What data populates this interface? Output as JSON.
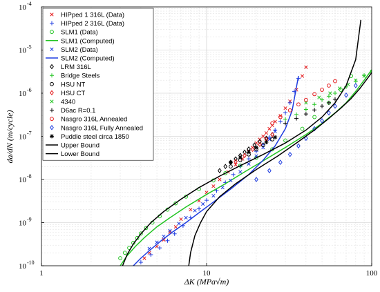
{
  "chart_data": {
    "type": "scatter",
    "xscale": "log",
    "yscale": "log",
    "xlim": [
      1,
      100
    ],
    "ylim": [
      1e-10,
      0.0001
    ],
    "grid": true,
    "legend_placement": "top-left",
    "xlabel": "ΔK (MPa√m)",
    "ylabel": "da/dN (m/cycle)",
    "x_ticks": [
      {
        "value": 1,
        "label": "1"
      },
      {
        "value": 10,
        "label": "10"
      },
      {
        "value": 100,
        "label": "100"
      }
    ],
    "y_ticks": [
      {
        "value": 1e-10,
        "label": "10",
        "exp": "-10"
      },
      {
        "value": 1e-09,
        "label": "10",
        "exp": "-9"
      },
      {
        "value": 1e-08,
        "label": "10",
        "exp": "-8"
      },
      {
        "value": 1e-07,
        "label": "10",
        "exp": "-7"
      },
      {
        "value": 1e-06,
        "label": "10",
        "exp": "-6"
      },
      {
        "value": 1e-05,
        "label": "10",
        "exp": "-5"
      },
      {
        "value": 0.0001,
        "label": "10",
        "exp": "-4"
      }
    ],
    "series": [
      {
        "name": "HIPped 1 316L (Data)",
        "marker": "x",
        "color": "#e41a1c",
        "x": [
          4.2,
          4.5,
          5.0,
          5.5,
          6.0,
          6.5,
          7.0,
          8.0,
          9.0,
          10.0,
          11.0,
          12.0,
          13.5,
          15.0,
          16.5,
          18.0,
          19.0,
          20.0,
          21.0,
          22.0,
          23.0,
          24.0,
          25.0,
          26.0,
          28.0,
          30.0,
          32.0,
          35.0,
          38.0,
          40.0
        ],
        "y": [
          1.5e-10,
          2e-10,
          2.8e-10,
          4e-10,
          6e-10,
          8e-10,
          1.2e-09,
          2e-09,
          3.2e-09,
          5e-09,
          7e-09,
          1e-08,
          1.5e-08,
          2.2e-08,
          3e-08,
          4.5e-08,
          5.5e-08,
          7e-08,
          8.5e-08,
          1e-07,
          1.2e-07,
          1.5e-07,
          1.8e-07,
          2.2e-07,
          3e-07,
          4.5e-07,
          6.5e-07,
          1.2e-06,
          2.5e-06,
          4e-06
        ]
      },
      {
        "name": "HIPped 2 316L (Data)",
        "marker": "plus",
        "color": "#1f3de0",
        "x": [
          4.0,
          4.6,
          5.2,
          5.8,
          6.4,
          7.2,
          8.0,
          9.0,
          10.0,
          11.5,
          13.0,
          14.5,
          16.0,
          18.0,
          20.0,
          22.0,
          24.0,
          26.0,
          28.0,
          30.0,
          32.0,
          34.0,
          36.0
        ],
        "y": [
          1.2e-10,
          1.8e-10,
          2.6e-10,
          3.8e-10,
          5.5e-10,
          8.5e-10,
          1.3e-09,
          2.1e-09,
          3.3e-09,
          5.5e-09,
          8.5e-09,
          1.3e-08,
          2e-08,
          3e-08,
          4.5e-08,
          6.5e-08,
          9.5e-08,
          1.4e-07,
          2.2e-07,
          3.5e-07,
          6e-07,
          1.1e-06,
          2.2e-06
        ]
      },
      {
        "name": "SLM1 (Data)",
        "marker": "circle",
        "color": "#22c422",
        "x": [
          3.0,
          3.2,
          3.4,
          3.6,
          3.8,
          4.0,
          4.3,
          4.7,
          5.2,
          5.8,
          6.5,
          7.5,
          9.0,
          11.0,
          13.0,
          16.0,
          20.0,
          25.0,
          30.0,
          38.0,
          45.0,
          55.0,
          65.0,
          75.0
        ],
        "y": [
          1.5e-10,
          2e-10,
          2.6e-10,
          3.4e-10,
          4.4e-10,
          5.6e-10,
          7.5e-10,
          1e-09,
          1.4e-09,
          2e-09,
          2.8e-09,
          4e-09,
          6e-09,
          9.5e-09,
          1.4e-08,
          2.1e-08,
          3.2e-08,
          5e-08,
          8e-08,
          1.5e-07,
          2.8e-07,
          6e-07,
          1.2e-06,
          2.5e-06
        ]
      },
      {
        "name": "SLM1 (Computed)",
        "line": true,
        "color": "#22c422",
        "x": [
          3.0,
          3.3,
          3.7,
          4.2,
          5.0,
          6.0,
          7.5,
          10.0,
          13.0,
          17.0,
          22.0,
          30.0,
          40.0,
          50.0,
          60.0,
          70.0,
          80.0,
          90.0,
          100.0
        ],
        "y": [
          1e-10,
          1.7e-10,
          2.8e-10,
          4.5e-10,
          8e-10,
          1.3e-09,
          2.3e-09,
          4.5e-09,
          8e-09,
          1.5e-08,
          2.7e-08,
          5.5e-08,
          1.1e-07,
          2e-07,
          3.5e-07,
          6e-07,
          1.1e-06,
          2e-06,
          3.5e-06
        ]
      },
      {
        "name": "SLM2 (Data)",
        "marker": "x",
        "color": "#1f3de0",
        "x": [
          4.5,
          5.0,
          5.5,
          6.0,
          6.8,
          7.5,
          8.5,
          9.5,
          11.0,
          12.5,
          14.0,
          16.0,
          18.0,
          20.0,
          22.0,
          24.0,
          26.0
        ],
        "y": [
          2.5e-10,
          3.5e-10,
          4.8e-10,
          6.5e-10,
          9.5e-10,
          1.3e-09,
          1.9e-09,
          2.7e-09,
          4.2e-09,
          6.5e-09,
          9.5e-09,
          1.5e-08,
          2.3e-08,
          3.5e-08,
          5.5e-08,
          8.5e-08,
          1.3e-07
        ]
      },
      {
        "name": "SLM2 (Computed)",
        "line": true,
        "color": "#1f3de0",
        "x": [
          3.6,
          4.0,
          4.6,
          5.3,
          6.2,
          7.5,
          9.0,
          11.0,
          14.0,
          18.0,
          22.0,
          26.0,
          30.0,
          33.0,
          36.0
        ],
        "y": [
          1e-10,
          1.5e-10,
          2.4e-10,
          3.8e-10,
          6e-10,
          1e-09,
          1.7e-09,
          3e-09,
          6e-09,
          1.3e-08,
          2.8e-08,
          6e-08,
          1.5e-07,
          4e-07,
          2.5e-06
        ]
      },
      {
        "name": "LRM 316L",
        "marker": "diamond",
        "color": "#000000",
        "x": [
          12.0,
          13.0,
          14.0,
          15.0,
          16.0,
          17.0,
          18.0,
          19.5,
          21.0,
          23.0,
          25.0
        ],
        "y": [
          1.6e-08,
          2e-08,
          2.5e-08,
          3e-08,
          3.6e-08,
          4.3e-08,
          5.1e-08,
          6.3e-08,
          7.5e-08,
          9e-08,
          1.1e-07
        ]
      },
      {
        "name": "Bridge Steels",
        "marker": "plus",
        "color": "#22c422",
        "x": [
          30.0,
          35.0,
          40.0,
          45.0,
          50.0,
          55.0,
          60.0,
          70.0,
          80.0,
          90.0
        ],
        "y": [
          2.5e-07,
          3.2e-07,
          4.2e-07,
          5.5e-07,
          7e-07,
          8.5e-07,
          1e-06,
          1.4e-06,
          1.9e-06,
          2.6e-06
        ]
      },
      {
        "name": "HSU NT",
        "marker": "circle",
        "color": "#000000",
        "x": [
          14.0,
          16.0,
          18.0,
          20.0,
          22.0,
          25.0
        ],
        "y": [
          2e-08,
          2.8e-08,
          3.8e-08,
          5e-08,
          6.3e-08,
          8.5e-08
        ]
      },
      {
        "name": "HSU CT",
        "marker": "diamond",
        "color": "#e41a1c",
        "x": [
          15.0,
          17.0,
          19.0,
          21.0,
          23.0,
          25.0
        ],
        "y": [
          2.6e-08,
          3.6e-08,
          5e-08,
          6.5e-08,
          8.5e-08,
          1.1e-07
        ]
      },
      {
        "name": "4340",
        "marker": "x",
        "color": "#22c422",
        "x": [
          40.0,
          48.0,
          56.0,
          64.0,
          72.0,
          80.0,
          90.0,
          100.0
        ],
        "y": [
          6e-07,
          8e-07,
          1e-06,
          1.3e-06,
          1.6e-06,
          2e-06,
          2.5e-06,
          3.2e-06
        ]
      },
      {
        "name": "D6ac R=0.1",
        "marker": "plus",
        "color": "#000000",
        "x": [
          30.0,
          35.0,
          40.0,
          45.0,
          50.0,
          55.0,
          60.0
        ],
        "y": [
          2e-07,
          2.6e-07,
          3.3e-07,
          4.1e-07,
          5e-07,
          6e-07,
          7.2e-07
        ]
      },
      {
        "name": "Nasgro 316L Annealed",
        "marker": "circle",
        "color": "#e41a1c",
        "x": [
          25.0,
          28.0,
          32.0,
          36.0,
          40.0,
          45.0,
          50.0,
          55.0,
          60.0
        ],
        "y": [
          2e-07,
          2.8e-07,
          4e-07,
          5.5e-07,
          7e-07,
          9.5e-07,
          1.2e-06,
          1.5e-06,
          1.9e-06
        ]
      },
      {
        "name": "Nasgro 316L Fully Annealed",
        "marker": "diamond",
        "color": "#1f3de0",
        "x": [
          20.0,
          24.0,
          28.0,
          32.0,
          36.0,
          40.0,
          45.0,
          50.0,
          55.0,
          60.0,
          70.0,
          80.0
        ],
        "y": [
          1e-08,
          1.6e-08,
          2.5e-08,
          3.8e-08,
          6e-08,
          9e-08,
          1.5e-07,
          2.3e-07,
          3.5e-07,
          5e-07,
          9e-07,
          1.5e-06
        ]
      },
      {
        "name": "Puddle steel circa 1850",
        "marker": "asterisk",
        "color": "#000000",
        "x": [
          14.0,
          16.0,
          18.0,
          20.0,
          23.0,
          26.0
        ],
        "y": [
          2.5e-08,
          3.3e-08,
          4.3e-08,
          5.5e-08,
          7.3e-08,
          9.5e-08
        ]
      },
      {
        "name": "Upper Bound",
        "line": true,
        "color": "#000000",
        "x": [
          3.1,
          3.3,
          3.6,
          4.0,
          4.6,
          5.5,
          7.0,
          9.0,
          12.0,
          16.0,
          22.0,
          30.0,
          40.0,
          50.0,
          60.0,
          70.0,
          80.0,
          86.0
        ],
        "y": [
          1e-10,
          1.8e-10,
          3.2e-10,
          5.5e-10,
          1e-09,
          1.8e-09,
          3.5e-09,
          6.5e-09,
          1.2e-08,
          2.1e-08,
          3.8e-08,
          7e-08,
          1.4e-07,
          2.8e-07,
          6e-07,
          1.5e-06,
          6e-06,
          5e-05
        ]
      },
      {
        "name": "Lower Bound",
        "line": true,
        "color": "#000000",
        "x": [
          7.8,
          8.0,
          8.5,
          9.2,
          10.0,
          12.0,
          15.0,
          20.0,
          27.0,
          35.0,
          45.0,
          55.0,
          65.0,
          75.0,
          85.0,
          95.0,
          100.0
        ],
        "y": [
          1e-10,
          2e-10,
          5e-10,
          1e-09,
          1.8e-09,
          4e-09,
          8e-09,
          1.7e-08,
          3.5e-08,
          7e-08,
          1.4e-07,
          2.6e-07,
          4.5e-07,
          7.5e-07,
          1.3e-06,
          2.3e-06,
          3e-06
        ]
      }
    ]
  }
}
